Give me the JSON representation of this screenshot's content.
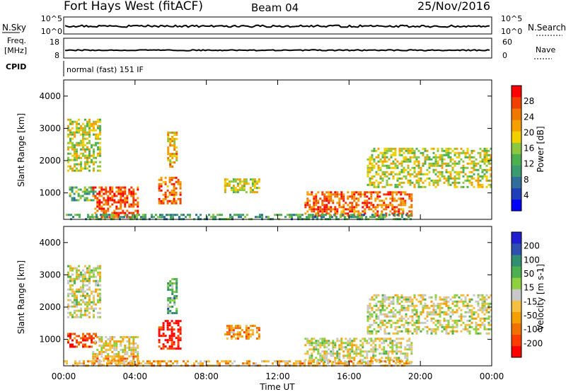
{
  "header": {
    "station": "Fort Hays West (fitACF)",
    "beam": "Beam 04",
    "date": "25/Nov/2016"
  },
  "status_panels": {
    "nsky_label": "N.Sky",
    "nsky_ticks": [
      "10^5",
      "10^0"
    ],
    "nsearch_label": "N.Search",
    "nsearch_ticks": [
      "10^5",
      "10^0"
    ],
    "freq_label_1": "Freq.",
    "freq_label_2": "[MHz]",
    "freq_ticks": [
      "18",
      "8"
    ],
    "nave_label": "Nave",
    "nave_ticks": [
      "60",
      "0"
    ],
    "cpid_label": "CPID",
    "cpid_value": "normal (fast) 151 IF"
  },
  "chart_data": [
    {
      "type": "heatmap",
      "name": "power",
      "ylabel": "Slant Range [km]",
      "yticks": [
        "4000",
        "3000",
        "2000",
        "1000"
      ],
      "ylim": [
        180,
        4500
      ],
      "xlim": [
        0,
        24
      ],
      "colorbar_label": "Power [dB]",
      "colorbar_ticks": [
        "28",
        "24",
        "20",
        "16",
        "12",
        "8",
        "4"
      ],
      "colors": [
        "#0000ff",
        "#1f3fb8",
        "#2f6e9a",
        "#3a9a70",
        "#4caf50",
        "#8dc63f",
        "#f0d000",
        "#f5a000",
        "#f07800",
        "#f04000",
        "#ff0000"
      ],
      "echo_regions": [
        {
          "t0": 0.2,
          "t1": 2.0,
          "r0": 1700,
          "r1": 3300,
          "level": 0.55
        },
        {
          "t0": 0.3,
          "t1": 1.8,
          "r0": 800,
          "r1": 1200,
          "level": 0.4
        },
        {
          "t0": 1.6,
          "t1": 4.2,
          "r0": 230,
          "r1": 1200,
          "level": 0.85
        },
        {
          "t0": 5.3,
          "t1": 6.6,
          "r0": 700,
          "r1": 1500,
          "level": 0.8
        },
        {
          "t0": 5.8,
          "t1": 6.3,
          "r0": 1800,
          "r1": 2900,
          "level": 0.65
        },
        {
          "t0": 9.0,
          "t1": 11.0,
          "r0": 1000,
          "r1": 1450,
          "level": 0.55
        },
        {
          "t0": 13.5,
          "t1": 19.5,
          "r0": 300,
          "r1": 1050,
          "level": 0.8
        },
        {
          "t0": 17.0,
          "t1": 24.0,
          "r0": 1200,
          "r1": 2400,
          "level": 0.55
        },
        {
          "t0": 0.0,
          "t1": 19.5,
          "r0": 180,
          "r1": 350,
          "level": 0.35
        }
      ]
    },
    {
      "type": "heatmap",
      "name": "velocity",
      "ylabel": "Slant Range [km]",
      "yticks": [
        "4000",
        "3000",
        "2000",
        "1000"
      ],
      "ylim": [
        180,
        4500
      ],
      "xlim": [
        0,
        24
      ],
      "xlabel": "Time UT",
      "xticks": [
        "00:00",
        "04:00",
        "08:00",
        "12:00",
        "16:00",
        "20:00",
        "00:00"
      ],
      "colorbar_label": "Velocity [m s-1]",
      "colorbar_ticks": [
        "200",
        "100",
        "50",
        "15",
        "-15",
        "-50",
        "-100",
        "-200"
      ],
      "colors": [
        "#ff0000",
        "#ff3c00",
        "#f07000",
        "#f5a000",
        "#f5c040",
        "#c8c8c8",
        "#8fd040",
        "#4caf50",
        "#2f8f70",
        "#2f4fb0",
        "#1f1fcf"
      ],
      "echo_regions": [
        {
          "t0": 0.2,
          "t1": 2.0,
          "r0": 1700,
          "r1": 3300,
          "level": 0.5
        },
        {
          "t0": 0.2,
          "t1": 1.8,
          "r0": 800,
          "r1": 1200,
          "level": 0.15
        },
        {
          "t0": 1.6,
          "t1": 4.2,
          "r0": 500,
          "r1": 1100,
          "level": 0.45
        },
        {
          "t0": 1.6,
          "t1": 4.2,
          "r0": 230,
          "r1": 500,
          "level": 0.3
        },
        {
          "t0": 5.3,
          "t1": 6.6,
          "r0": 700,
          "r1": 1600,
          "level": 0.05
        },
        {
          "t0": 5.8,
          "t1": 6.3,
          "r0": 1800,
          "r1": 2900,
          "level": 0.65
        },
        {
          "t0": 9.0,
          "t1": 11.0,
          "r0": 1000,
          "r1": 1450,
          "level": 0.3
        },
        {
          "t0": 13.5,
          "t1": 19.5,
          "r0": 300,
          "r1": 1050,
          "level": 0.5
        },
        {
          "t0": 17.0,
          "t1": 24.0,
          "r0": 1200,
          "r1": 2400,
          "level": 0.5
        },
        {
          "t0": 0.0,
          "t1": 19.5,
          "r0": 180,
          "r1": 350,
          "level": 0.35
        }
      ]
    }
  ]
}
